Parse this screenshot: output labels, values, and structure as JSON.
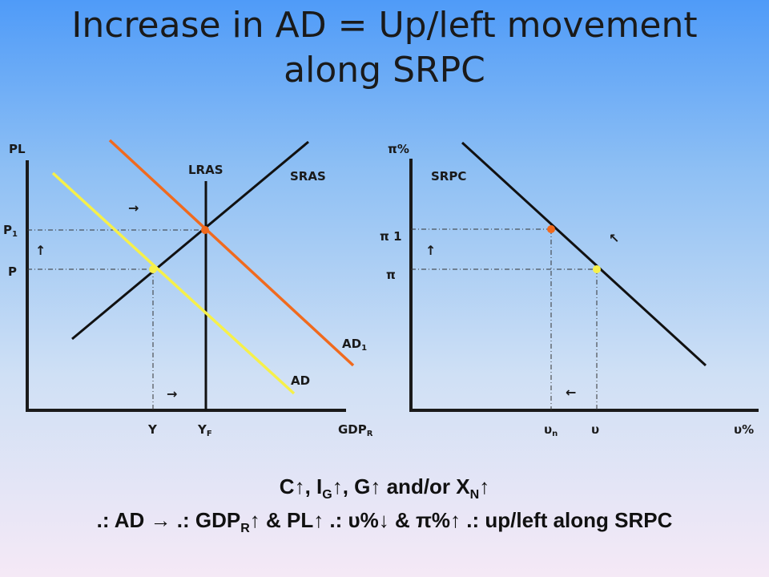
{
  "title": {
    "line1": "Increase in AD = Up/left movement",
    "line2": "along SRPC"
  },
  "left_graph": {
    "y_axis_label": "PL",
    "x_axis_label_main": "GDP",
    "x_axis_label_sub": "R",
    "lras_label": "LRAS",
    "sras_label": "SRAS",
    "ad_label": "AD",
    "ad1_label_main": "AD",
    "ad1_label_sub": "1",
    "p1_label_main": "P",
    "p1_label_sub": "1",
    "p_label": "P",
    "y_label": "Y",
    "yf_label_main": "Y",
    "yf_label_sub": "F",
    "arrow_right": "→",
    "arrow_up": "↑"
  },
  "right_graph": {
    "y_axis_label": "π%",
    "x_axis_label": "υ%",
    "srpc_label": "SRPC",
    "pi1_label": "π 1",
    "pi_label": "π",
    "un_label_main": "υ",
    "un_label_sub": "n",
    "u_label": "υ",
    "arrow_up": "↑",
    "arrow_upleft": "↖",
    "arrow_left": "←"
  },
  "colors": {
    "ad": "#f6f04a",
    "ad1": "#f06a1e",
    "axis": "#1a1a1a",
    "curve": "#111111"
  },
  "footer": {
    "line1_parts": [
      "C↑, I",
      "G",
      "↑, G↑ and/or X",
      "N",
      "↑"
    ],
    "line2_parts": [
      ".: AD → .: GDP",
      "R",
      "↑ & PL↑ .: υ%↓ & π%↑ .: up/left along SRPC"
    ]
  }
}
